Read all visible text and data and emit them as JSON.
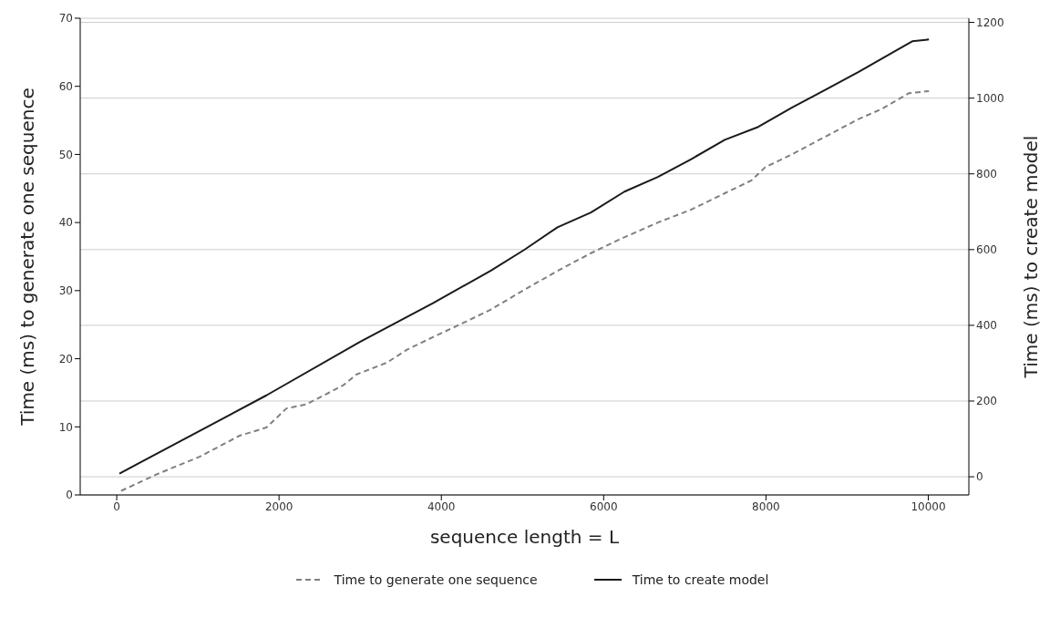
{
  "chart_data": {
    "type": "line",
    "xlabel": "sequence length = L",
    "ylabel": "Time (ms) to generate one sequence",
    "y2label": "Time (ms) to create model",
    "xlim": [
      -450,
      10500
    ],
    "xticks": [
      0,
      2000,
      4000,
      6000,
      8000,
      10000
    ],
    "ylim": [
      0,
      70
    ],
    "yticks": [
      0,
      10,
      20,
      30,
      40,
      50,
      60,
      70
    ],
    "y2lim": [
      -48,
      1211
    ],
    "y2ticks": [
      0,
      200,
      400,
      600,
      800,
      1000,
      1200
    ],
    "grid": "y2",
    "legend": "bottom",
    "marker": "none",
    "series": [
      {
        "name": "Time to generate one sequence",
        "color": "#808080",
        "line_style": "dashed",
        "x": [
          54,
          486,
          1020,
          1514,
          1844,
          2091,
          2337,
          2790,
          2955,
          3325,
          3572,
          3901,
          4189,
          4606,
          5019,
          5431,
          5843,
          6173,
          6668,
          7080,
          7493,
          7823,
          7988,
          8318,
          8730,
          9142,
          9431,
          9761,
          10008
        ],
        "values": [
          0.6,
          3.0,
          5.6,
          8.7,
          9.9,
          12.7,
          13.3,
          16.1,
          17.7,
          19.4,
          21.3,
          23.2,
          24.8,
          27.2,
          30.1,
          32.9,
          35.5,
          37.4,
          40.0,
          41.9,
          44.3,
          46.2,
          48.1,
          50.0,
          52.6,
          55.2,
          56.7,
          59.0,
          59.3
        ]
      },
      {
        "name": "Time to create model",
        "color": "#1a1a1a",
        "line_style": "solid",
        "axis": "y2",
        "x": [
          33,
          1844,
          2996,
          3901,
          4606,
          5019,
          5431,
          5843,
          6256,
          6668,
          7080,
          7493,
          7905,
          8318,
          8730,
          9142,
          9555,
          9802,
          10008
        ],
        "values": [
          8.5,
          215,
          356,
          459,
          544,
          599,
          659,
          698,
          753,
          792,
          839,
          890,
          924,
          975,
          1022,
          1069,
          1120,
          1150,
          1155
        ]
      }
    ]
  }
}
